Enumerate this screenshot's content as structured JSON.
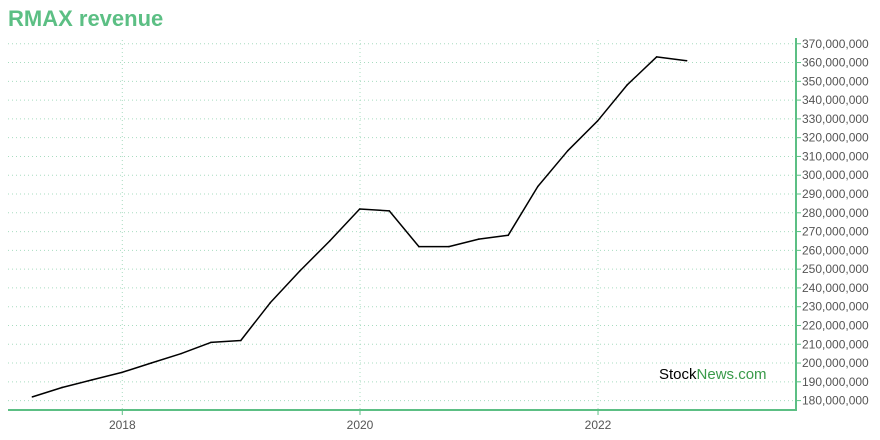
{
  "chart_data": {
    "type": "line",
    "title": "RMAX revenue",
    "xlabel": "",
    "ylabel": "",
    "x_ticks": [
      "2018",
      "2020",
      "2022"
    ],
    "y_ticks": [
      "180,000,000",
      "190,000,000",
      "200,000,000",
      "210,000,000",
      "220,000,000",
      "230,000,000",
      "240,000,000",
      "250,000,000",
      "260,000,000",
      "270,000,000",
      "280,000,000",
      "290,000,000",
      "300,000,000",
      "310,000,000",
      "320,000,000",
      "330,000,000",
      "340,000,000",
      "350,000,000",
      "360,000,000",
      "370,000,000"
    ],
    "ylim": [
      175000000,
      372000000
    ],
    "xlim": [
      "2017-01-15",
      "2023-09-01"
    ],
    "grid": true,
    "series": [
      {
        "color": "#000000",
        "points": [
          {
            "x": "2017-03-31",
            "y": 182000000
          },
          {
            "x": "2017-06-30",
            "y": 187000000
          },
          {
            "x": "2017-09-30",
            "y": 191000000
          },
          {
            "x": "2017-12-31",
            "y": 195000000
          },
          {
            "x": "2018-03-31",
            "y": 200000000
          },
          {
            "x": "2018-06-30",
            "y": 205000000
          },
          {
            "x": "2018-09-30",
            "y": 211000000
          },
          {
            "x": "2018-12-31",
            "y": 212000000
          },
          {
            "x": "2019-03-31",
            "y": 232000000
          },
          {
            "x": "2019-06-30",
            "y": 249000000
          },
          {
            "x": "2019-09-30",
            "y": 265000000
          },
          {
            "x": "2019-12-31",
            "y": 282000000
          },
          {
            "x": "2020-03-31",
            "y": 281000000
          },
          {
            "x": "2020-06-30",
            "y": 262000000
          },
          {
            "x": "2020-09-30",
            "y": 262000000
          },
          {
            "x": "2020-12-31",
            "y": 266000000
          },
          {
            "x": "2021-03-31",
            "y": 268000000
          },
          {
            "x": "2021-06-30",
            "y": 294000000
          },
          {
            "x": "2021-09-30",
            "y": 313000000
          },
          {
            "x": "2021-12-31",
            "y": 329000000
          },
          {
            "x": "2022-03-31",
            "y": 348000000
          },
          {
            "x": "2022-06-30",
            "y": 363000000
          },
          {
            "x": "2022-09-30",
            "y": 361000000
          }
        ]
      }
    ]
  },
  "watermark": {
    "part1": "Stock",
    "part2": "News.com"
  },
  "colors": {
    "accent": "#5cbf84",
    "grid": "#a8dcc0",
    "line": "#000000"
  }
}
